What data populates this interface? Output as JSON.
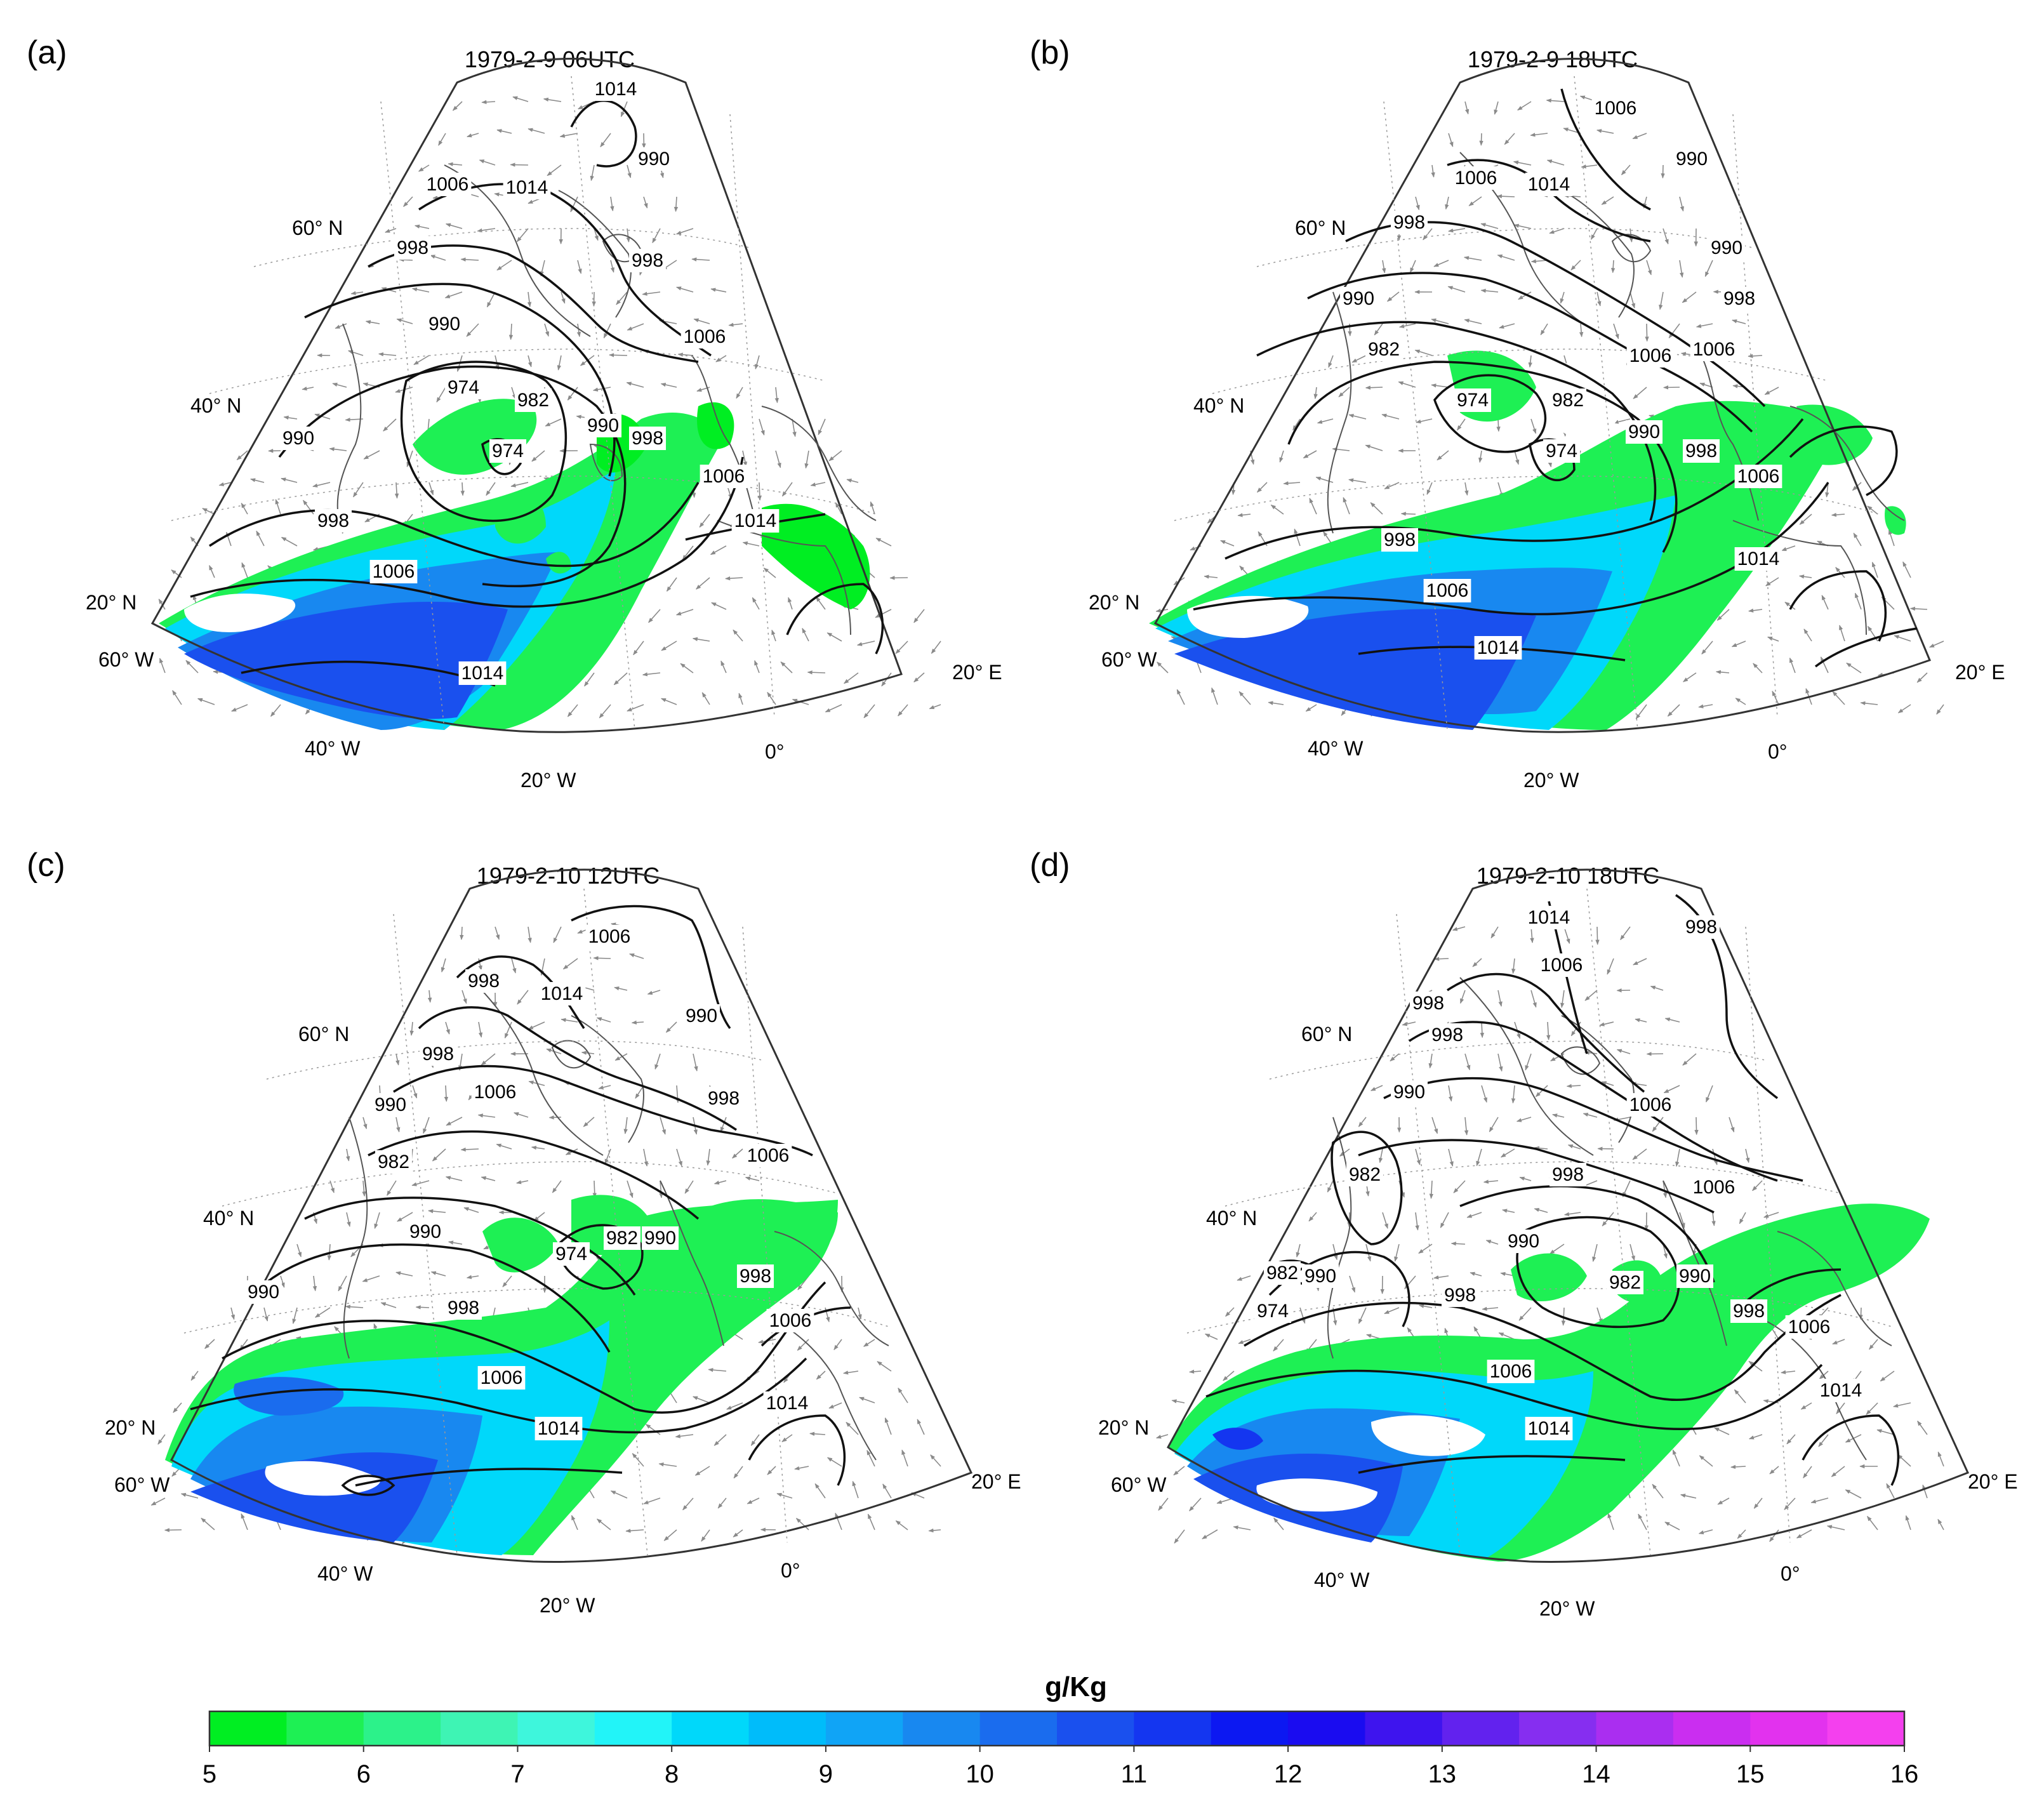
{
  "colorbar": {
    "unit": "g/Kg",
    "min": 5,
    "max": 16,
    "step": 0.5,
    "ticks": [
      "5",
      "6",
      "7",
      "8",
      "9",
      "10",
      "11",
      "12",
      "13",
      "14",
      "15",
      "16"
    ],
    "colors": [
      "#00ee22",
      "#1ef054",
      "#2cf28a",
      "#3ef4b4",
      "#3ef6dc",
      "#22f4f8",
      "#00d8fa",
      "#00bcfa",
      "#10a4f6",
      "#1888f0",
      "#1a6cee",
      "#1a50ee",
      "#1436f0",
      "#0c18f2",
      "#1a0cf0",
      "#3e14ee",
      "#6222ee",
      "#862ef0",
      "#aa2ef0",
      "#ca2ef0",
      "#e232ee",
      "#f440ee"
    ]
  },
  "panels": [
    {
      "letter": "(a)",
      "title": "1979-2-9 06UTC",
      "lat_labels": [
        "60° N",
        "40° N",
        "20° N"
      ],
      "lon_labels": [
        "60° W",
        "40° W",
        "20° W",
        "0°",
        "20° E"
      ],
      "isobar_labels": [
        "1014",
        "1006",
        "1014",
        "990",
        "998",
        "998",
        "990",
        "1006",
        "974",
        "982",
        "974",
        "990",
        "998",
        "1006",
        "990",
        "998",
        "1006",
        "1014",
        "1014"
      ]
    },
    {
      "letter": "(b)",
      "title": "1979-2-9 18UTC",
      "lat_labels": [
        "60° N",
        "40° N",
        "20° N"
      ],
      "lon_labels": [
        "60° W",
        "40° W",
        "20° W",
        "0°",
        "20° E"
      ],
      "isobar_labels": [
        "1006",
        "1006",
        "1014",
        "990",
        "998",
        "990",
        "998",
        "990",
        "982",
        "1006",
        "1006",
        "974",
        "982",
        "974",
        "990",
        "998",
        "1006",
        "998",
        "1006",
        "1014",
        "1014"
      ]
    },
    {
      "letter": "(c)",
      "title": "1979-2-10 12UTC",
      "lat_labels": [
        "60° N",
        "40° N",
        "20° N"
      ],
      "lon_labels": [
        "60° W",
        "40° W",
        "20° W",
        "0°",
        "20° E"
      ],
      "isobar_labels": [
        "1006",
        "998",
        "1014",
        "990",
        "998",
        "1006",
        "998",
        "990",
        "982",
        "1006",
        "990",
        "974",
        "982",
        "990",
        "998",
        "1006",
        "990",
        "998",
        "1006",
        "1014",
        "1014"
      ]
    },
    {
      "letter": "(d)",
      "title": "1979-2-10 18UTC",
      "lat_labels": [
        "60° N",
        "40° N",
        "20° N"
      ],
      "lon_labels": [
        "60° W",
        "40° W",
        "20° W",
        "0°",
        "20° E"
      ],
      "isobar_labels": [
        "1014",
        "998",
        "1006",
        "998",
        "998",
        "990",
        "1006",
        "982",
        "998",
        "1006",
        "990",
        "982",
        "990",
        "974",
        "998",
        "982",
        "990",
        "998",
        "1006",
        "1006",
        "1014",
        "1014"
      ]
    }
  ]
}
